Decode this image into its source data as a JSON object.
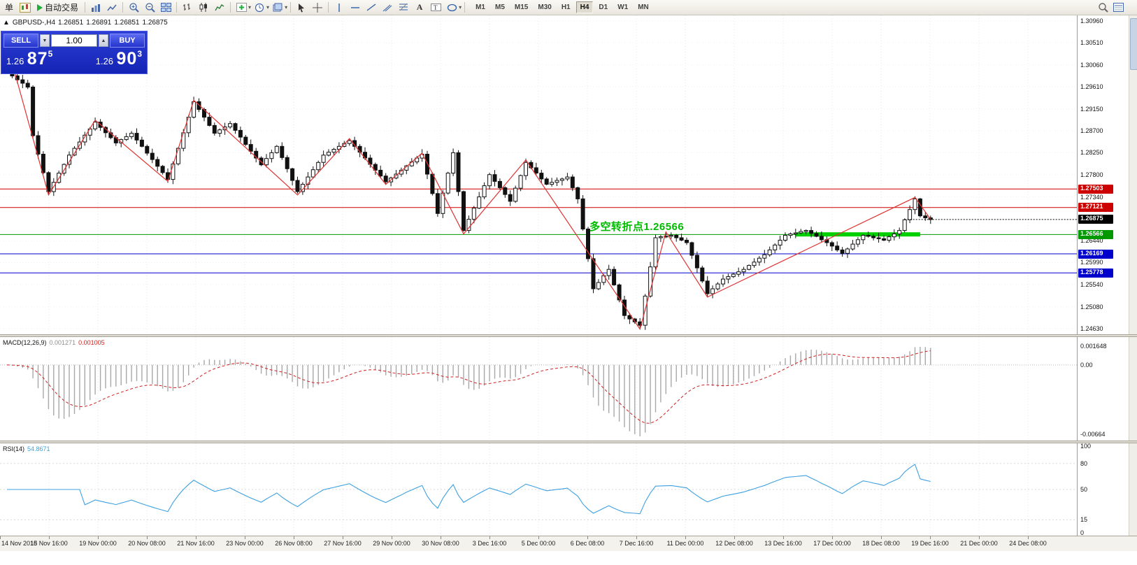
{
  "toolbar": {
    "order_button": "单",
    "autotrade_button": "自动交易",
    "text_tool_label": "A",
    "chevron_glyph": "▾",
    "icons": [
      "new-chart",
      "autotrade-play",
      "bar-chart",
      "line-chart",
      "zoom-in",
      "zoom-out",
      "tile-windows",
      "bars-type",
      "candles-type",
      "line-type",
      "add-indicator",
      "periods-clock",
      "templates",
      "cursor",
      "crosshair",
      "vertical-line",
      "horizontal-line",
      "trendline",
      "equidistant-channel",
      "fibonacci",
      "text",
      "text-label",
      "shapes",
      "search",
      "data-window"
    ],
    "timeframes": [
      "M1",
      "M5",
      "M15",
      "M30",
      "H1",
      "H4",
      "D1",
      "W1",
      "MN"
    ],
    "active_timeframe": "H4"
  },
  "trade_panel": {
    "sell_label": "SELL",
    "buy_label": "BUY",
    "volume": "1.00",
    "sell_price": {
      "prefix": "1.26",
      "big": "87",
      "sup": "5"
    },
    "buy_price": {
      "prefix": "1.26",
      "big": "90",
      "sup": "3"
    }
  },
  "chart_header": {
    "marker": "▲",
    "symbol": "GBPUSD-,H4",
    "open": "1.26851",
    "high": "1.26891",
    "low": "1.26851",
    "close": "1.26875"
  },
  "annotation": {
    "text": "多空转折点1.26566",
    "color": "#00bb00"
  },
  "time_axis": {
    "labels": [
      "14 Nov 2018",
      "15 Nov 16:00",
      "19 Nov 00:00",
      "20 Nov 08:00",
      "21 Nov 16:00",
      "23 Nov 00:00",
      "26 Nov 08:00",
      "27 Nov 16:00",
      "29 Nov 00:00",
      "30 Nov 08:00",
      "3 Dec 16:00",
      "5 Dec 00:00",
      "6 Dec 08:00",
      "7 Dec 16:00",
      "11 Dec 00:00",
      "12 Dec 08:00",
      "13 Dec 16:00",
      "17 Dec 00:00",
      "18 Dec 08:00",
      "19 Dec 16:00",
      "21 Dec 00:00",
      "24 Dec 08:00"
    ]
  },
  "chart_data": {
    "type": "candlestick",
    "symbol": "GBPUSD",
    "timeframe": "H4",
    "price_range": {
      "min": 1.2463,
      "max": 1.3096
    },
    "axis_ticks": [
      "1.30960",
      "1.30510",
      "1.30060",
      "1.29610",
      "1.29150",
      "1.28700",
      "1.28250",
      "1.27800",
      "1.27340",
      "1.26440",
      "1.25990",
      "1.25540",
      "1.25080",
      "1.24630"
    ],
    "closes": [
      1.299,
      1.2983,
      1.2975,
      1.2968,
      1.296,
      1.286,
      1.2822,
      1.2784,
      1.2745,
      1.2764,
      1.2783,
      1.2801,
      1.282,
      1.2834,
      1.2847,
      1.2861,
      1.2874,
      1.2888,
      1.2877,
      1.2866,
      1.2856,
      1.2845,
      1.2852,
      1.2858,
      1.2865,
      1.2851,
      1.2838,
      1.2824,
      1.2811,
      1.2797,
      1.2784,
      1.277,
      1.2802,
      1.2834,
      1.2866,
      1.2898,
      1.293,
      1.2914,
      1.2898,
      1.2881,
      1.2865,
      1.2872,
      1.2878,
      1.2885,
      1.2871,
      1.2857,
      1.2842,
      1.2828,
      1.2814,
      1.28,
      1.2813,
      1.2825,
      1.2838,
      1.2815,
      1.2792,
      1.2768,
      1.2745,
      1.276,
      1.2775,
      1.279,
      1.2805,
      1.282,
      1.2826,
      1.2832,
      1.2838,
      1.2844,
      1.285,
      1.2838,
      1.2826,
      1.2814,
      1.2801,
      1.2789,
      1.2777,
      1.2765,
      1.2773,
      1.2781,
      1.2789,
      1.2798,
      1.2806,
      1.2814,
      1.2822,
      1.2781,
      1.2741,
      1.27,
      1.2742,
      1.2783,
      1.2825,
      1.2745,
      1.2665,
      1.2688,
      1.2711,
      1.2734,
      1.2757,
      1.278,
      1.2766,
      1.2753,
      1.2739,
      1.2725,
      1.2752,
      1.2778,
      1.2805,
      1.2794,
      1.2783,
      1.2771,
      1.276,
      1.2764,
      1.2768,
      1.2771,
      1.2775,
      1.2753,
      1.273,
      1.2668,
      1.2607,
      1.2545,
      1.2558,
      1.2572,
      1.2585,
      1.2553,
      1.2522,
      1.249,
      1.2483,
      1.2477,
      1.247,
      1.253,
      1.259,
      1.265,
      1.2652,
      1.2653,
      1.2655,
      1.265,
      1.2645,
      1.264,
      1.2614,
      1.2588,
      1.2561,
      1.2535,
      1.2545,
      1.2555,
      1.2565,
      1.257,
      1.2575,
      1.258,
      1.2585,
      1.2593,
      1.26,
      1.2608,
      1.2615,
      1.2625,
      1.2635,
      1.2645,
      1.2655,
      1.2658,
      1.266,
      1.2663,
      1.2665,
      1.2659,
      1.2653,
      1.2646,
      1.264,
      1.2633,
      1.2625,
      1.2618,
      1.2627,
      1.2637,
      1.2646,
      1.2655,
      1.2653,
      1.265,
      1.2648,
      1.2645,
      1.2652,
      1.2658,
      1.2665,
      1.2687,
      1.2708,
      1.273,
      1.2695,
      1.2691,
      1.26875
    ],
    "zigzag": [
      [
        0,
        1.3048
      ],
      [
        8,
        1.2738
      ],
      [
        17,
        1.2892
      ],
      [
        31,
        1.2766
      ],
      [
        36,
        1.2933
      ],
      [
        56,
        1.2738
      ],
      [
        66,
        1.2854
      ],
      [
        73,
        1.276
      ],
      [
        80,
        1.2824
      ],
      [
        88,
        1.2658
      ],
      [
        100,
        1.281
      ],
      [
        122,
        1.2462
      ],
      [
        127,
        1.2662
      ],
      [
        135,
        1.2528
      ],
      [
        175,
        1.2733
      ],
      [
        178,
        1.2688
      ]
    ],
    "hlines": [
      {
        "price": 1.27503,
        "color": "#cc0000",
        "label": "1.27503"
      },
      {
        "price": 1.27121,
        "color": "#cc0000",
        "label": "1.27121"
      },
      {
        "price": 1.26566,
        "color": "#009900",
        "label": "1.26566"
      },
      {
        "price": 1.26169,
        "color": "#0000cc",
        "label": "1.26169"
      },
      {
        "price": 1.25778,
        "color": "#0000cc",
        "label": "1.25778"
      }
    ],
    "current_price": 1.26875,
    "current_price_label": "1.26875",
    "green_zone": {
      "from_index": 152,
      "to_index": 176,
      "price": 1.2657,
      "color": "#00d000"
    },
    "macd": {
      "label": "MACD(12,26,9)",
      "value_main": "0.001271",
      "value_signal": "0.001005",
      "axis_labels": [
        "0.001648",
        "0.00",
        "-0.00664"
      ]
    },
    "rsi": {
      "label": "RSI(14)",
      "value": "54.8671",
      "axis_labels": [
        "100",
        "80",
        "50",
        "15",
        "0"
      ],
      "levels": [
        80,
        50,
        15
      ]
    }
  }
}
